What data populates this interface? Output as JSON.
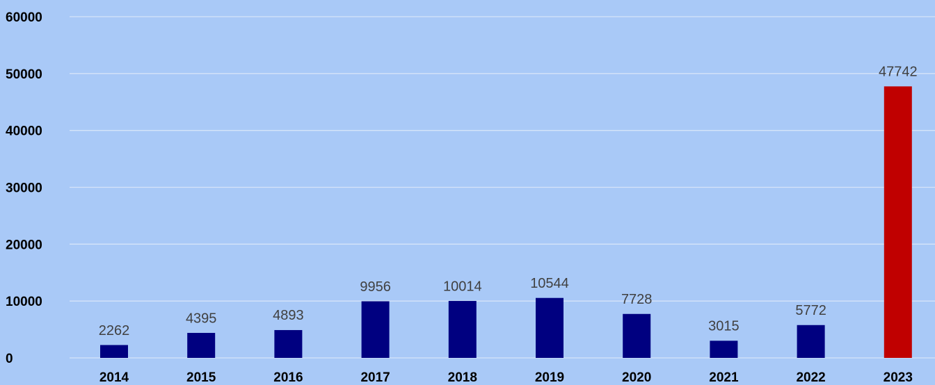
{
  "chart_data": {
    "type": "bar",
    "categories": [
      "2014",
      "2015",
      "2016",
      "2017",
      "2018",
      "2019",
      "2020",
      "2021",
      "2022",
      "2023"
    ],
    "values": [
      2262,
      4395,
      4893,
      9956,
      10014,
      10544,
      7728,
      3015,
      5772,
      47742
    ],
    "colors": [
      "#000080",
      "#000080",
      "#000080",
      "#000080",
      "#000080",
      "#000080",
      "#000080",
      "#000080",
      "#000080",
      "#c00000"
    ],
    "ylim": [
      0,
      60000
    ],
    "yticks": [
      0,
      10000,
      20000,
      30000,
      40000,
      50000,
      60000
    ],
    "grid": true
  }
}
